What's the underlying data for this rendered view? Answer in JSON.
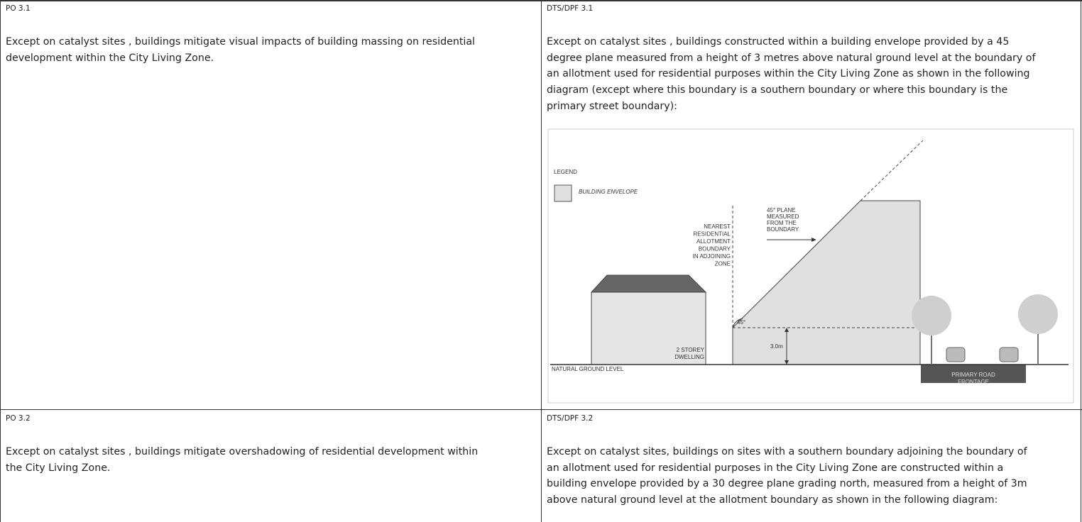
{
  "table": {
    "rows": [
      [
        {
          "label": "PO 3.1",
          "lines": [
            "Except on catalyst sites , buildings mitigate visual impacts of building massing on residential",
            "development within the City Living Zone."
          ]
        },
        {
          "label": "DTS/DPF 3.1",
          "lines": [
            "Except on catalyst sites , buildings constructed within a building envelope provided by a 45",
            "degree plane measured from a height of 3 metres above natural ground level at the boundary of",
            "an allotment used for residential purposes within the City Living Zone as shown in the following",
            "diagram (except where this boundary is a southern boundary or where this boundary is the",
            "primary street boundary):"
          ],
          "diagram": {
            "legend_title": "LEGEND",
            "legend_item": "BUILDING ENVELOPE",
            "boundary_label": [
              "NEAREST",
              "RESIDENTIAL",
              "ALLOTMENT",
              "BOUNDARY",
              "IN ADJOINING",
              "ZONE"
            ],
            "plane_label": [
              "45° PLANE",
              "MEASURED",
              "FROM THE",
              "BOUNDARY"
            ],
            "angle_label": "45°",
            "height_label": "3.0m",
            "dwelling_label": [
              "2 STOREY",
              "DWELLING"
            ],
            "ground_label": "NATURAL GROUND LEVEL",
            "road_label": [
              "PRIMARY ROAD",
              "FRONTAGE"
            ]
          }
        }
      ],
      [
        {
          "label": "PO 3.2",
          "lines": [
            "Except on catalyst sites , buildings mitigate overshadowing of residential development within",
            "the City Living Zone."
          ]
        },
        {
          "label": "DTS/DPF 3.2",
          "lines": [
            "Except on catalyst sites, buildings on sites with a southern boundary adjoining the boundary of",
            "an allotment used for residential purposes in the City Living Zone are constructed within a",
            "building envelope provided by a 30 degree plane grading north, measured from a height of 3m",
            "above natural ground level at the allotment boundary as shown in the following diagram:"
          ]
        }
      ]
    ]
  }
}
